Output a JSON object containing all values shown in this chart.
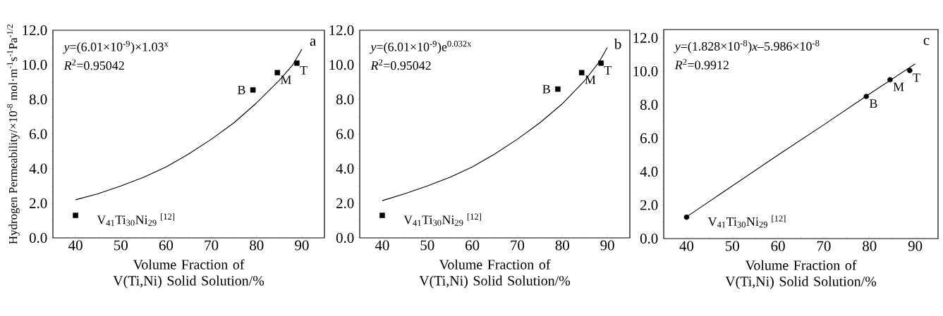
{
  "chart_data": [
    {
      "type": "scatter",
      "ylabel": "Hydrogen Permeability/×10$^{-8}$ mol·m$^{-1}$s$^{-1}$Pa$^{-1/2}$",
      "xlabel": "Volume Fraction of V(Ti,Ni) Solid Solution/%",
      "xlim": [
        35,
        95
      ],
      "xticks": [
        40,
        50,
        60,
        70,
        80,
        90
      ],
      "ylim": [
        0,
        12
      ],
      "yticks": [
        {
          "value": 0,
          "label": "0.0"
        },
        {
          "value": 2,
          "label": "2.0"
        },
        {
          "value": 4,
          "label": "4.0"
        },
        {
          "value": 6,
          "label": "6.0"
        },
        {
          "value": 8,
          "label": "8.0"
        },
        {
          "value": 10,
          "label": "10.0"
        },
        {
          "value": 12,
          "label": "12.0"
        }
      ],
      "series": [
        {
          "marker": "square",
          "color": "#000000",
          "x": [
            40,
            79.2,
            84.6,
            88.9
          ],
          "values": [
            1.3,
            8.55,
            9.55,
            10.1
          ]
        },
        {
          "type": "line",
          "marker": "none",
          "color": "#000000",
          "x": [
            40,
            45,
            50,
            55,
            60,
            65,
            70,
            75,
            80,
            85,
            88,
            90
          ],
          "values": [
            2.2,
            2.55,
            3.0,
            3.5,
            4.1,
            4.85,
            5.7,
            6.65,
            7.8,
            9.1,
            10.0,
            10.9
          ]
        }
      ],
      "annotations": [
        "*y*=(6.01×10$^{-9}$)×1.03$^{x}$",
        "*R*$^{2}$=0.95042",
        "a",
        {
          "text": "B",
          "x": 79.2,
          "y": 8.55
        },
        {
          "text": "M",
          "x": 84.6,
          "y": 9.55
        },
        {
          "text": "T",
          "x": 88.9,
          "y": 10.1
        },
        {
          "text": "V$_{41}$Ti$_{30}$Ni$_{29}$ $^{[12]}$",
          "x": 40,
          "y": 1.3
        }
      ]
    },
    {
      "type": "scatter",
      "xlabel": "Volume Fraction of V(Ti,Ni) Solid Solution/%",
      "xlim": [
        35,
        95
      ],
      "xticks": [
        40,
        50,
        60,
        70,
        80,
        90
      ],
      "ylim": [
        0,
        12
      ],
      "yticks": [
        {
          "value": 0,
          "label": "0.0"
        },
        {
          "value": 2,
          "label": "2.0"
        },
        {
          "value": 4,
          "label": "4.0"
        },
        {
          "value": 6,
          "label": "6.0"
        },
        {
          "value": 8,
          "label": "8.0"
        },
        {
          "value": 10,
          "label": "10.0"
        },
        {
          "value": 12,
          "label": "12.0"
        }
      ],
      "series": [
        {
          "marker": "square",
          "color": "#000000",
          "x": [
            40,
            79,
            84.3,
            88.6
          ],
          "values": [
            1.3,
            8.6,
            9.55,
            10.1
          ]
        },
        {
          "type": "line",
          "marker": "none",
          "color": "#000000",
          "x": [
            40,
            45,
            50,
            55,
            60,
            65,
            70,
            75,
            80,
            85,
            88,
            90
          ],
          "values": [
            2.15,
            2.55,
            3.0,
            3.5,
            4.1,
            4.85,
            5.7,
            6.65,
            7.75,
            9.1,
            10.1,
            11.0
          ]
        }
      ],
      "annotations": [
        "*y*=(6.01×10$^{-9}$)e$^{0.032x}$",
        "*R*$^{2}$=0.95042",
        "b",
        {
          "text": "B",
          "x": 79,
          "y": 8.6
        },
        {
          "text": "M",
          "x": 84.3,
          "y": 9.55
        },
        {
          "text": "T",
          "x": 88.6,
          "y": 10.1
        },
        {
          "text": "V$_{41}$Ti$_{30}$Ni$_{29}$ $^{[12]}$",
          "x": 40,
          "y": 1.3
        }
      ]
    },
    {
      "type": "scatter",
      "xlabel": "Volume Fraction of V(Ti,Ni) Solid Solution/%",
      "xlim": [
        35,
        95
      ],
      "xticks": [
        40,
        50,
        60,
        70,
        80,
        90
      ],
      "ylim": [
        0,
        12.5
      ],
      "yticks": [
        {
          "value": 0,
          "label": "0.0"
        },
        {
          "value": 2,
          "label": "2.0"
        },
        {
          "value": 4,
          "label": "4.0"
        },
        {
          "value": 6,
          "label": "6.0"
        },
        {
          "value": 8,
          "label": "8.0"
        },
        {
          "value": 10,
          "label": "10.0"
        },
        {
          "value": 12,
          "label": "12.0"
        }
      ],
      "series": [
        {
          "marker": "circle",
          "color": "#000000",
          "x": [
            40,
            79.3,
            84.5,
            88.8
          ],
          "values": [
            1.28,
            8.5,
            9.5,
            10.05
          ]
        },
        {
          "type": "line",
          "marker": "none",
          "color": "#000000",
          "x": [
            40,
            50,
            60,
            70,
            80,
            90
          ],
          "values": [
            1.3,
            3.15,
            5.0,
            6.8,
            8.65,
            10.45
          ]
        }
      ],
      "annotations": [
        "*y*=(1.828×10$^{-8}$)*x*–5.986×10$^{-8}$",
        "*R*$^{2}$=0.9912",
        "c",
        {
          "text": "B",
          "x": 79.3,
          "y": 8.5
        },
        {
          "text": "M",
          "x": 84.5,
          "y": 9.5
        },
        {
          "text": "T",
          "x": 88.8,
          "y": 10.05
        },
        {
          "text": "V$_{41}$Ti$_{30}$Ni$_{29}$ $^{[12]}$",
          "x": 40,
          "y": 1.28
        }
      ]
    }
  ]
}
